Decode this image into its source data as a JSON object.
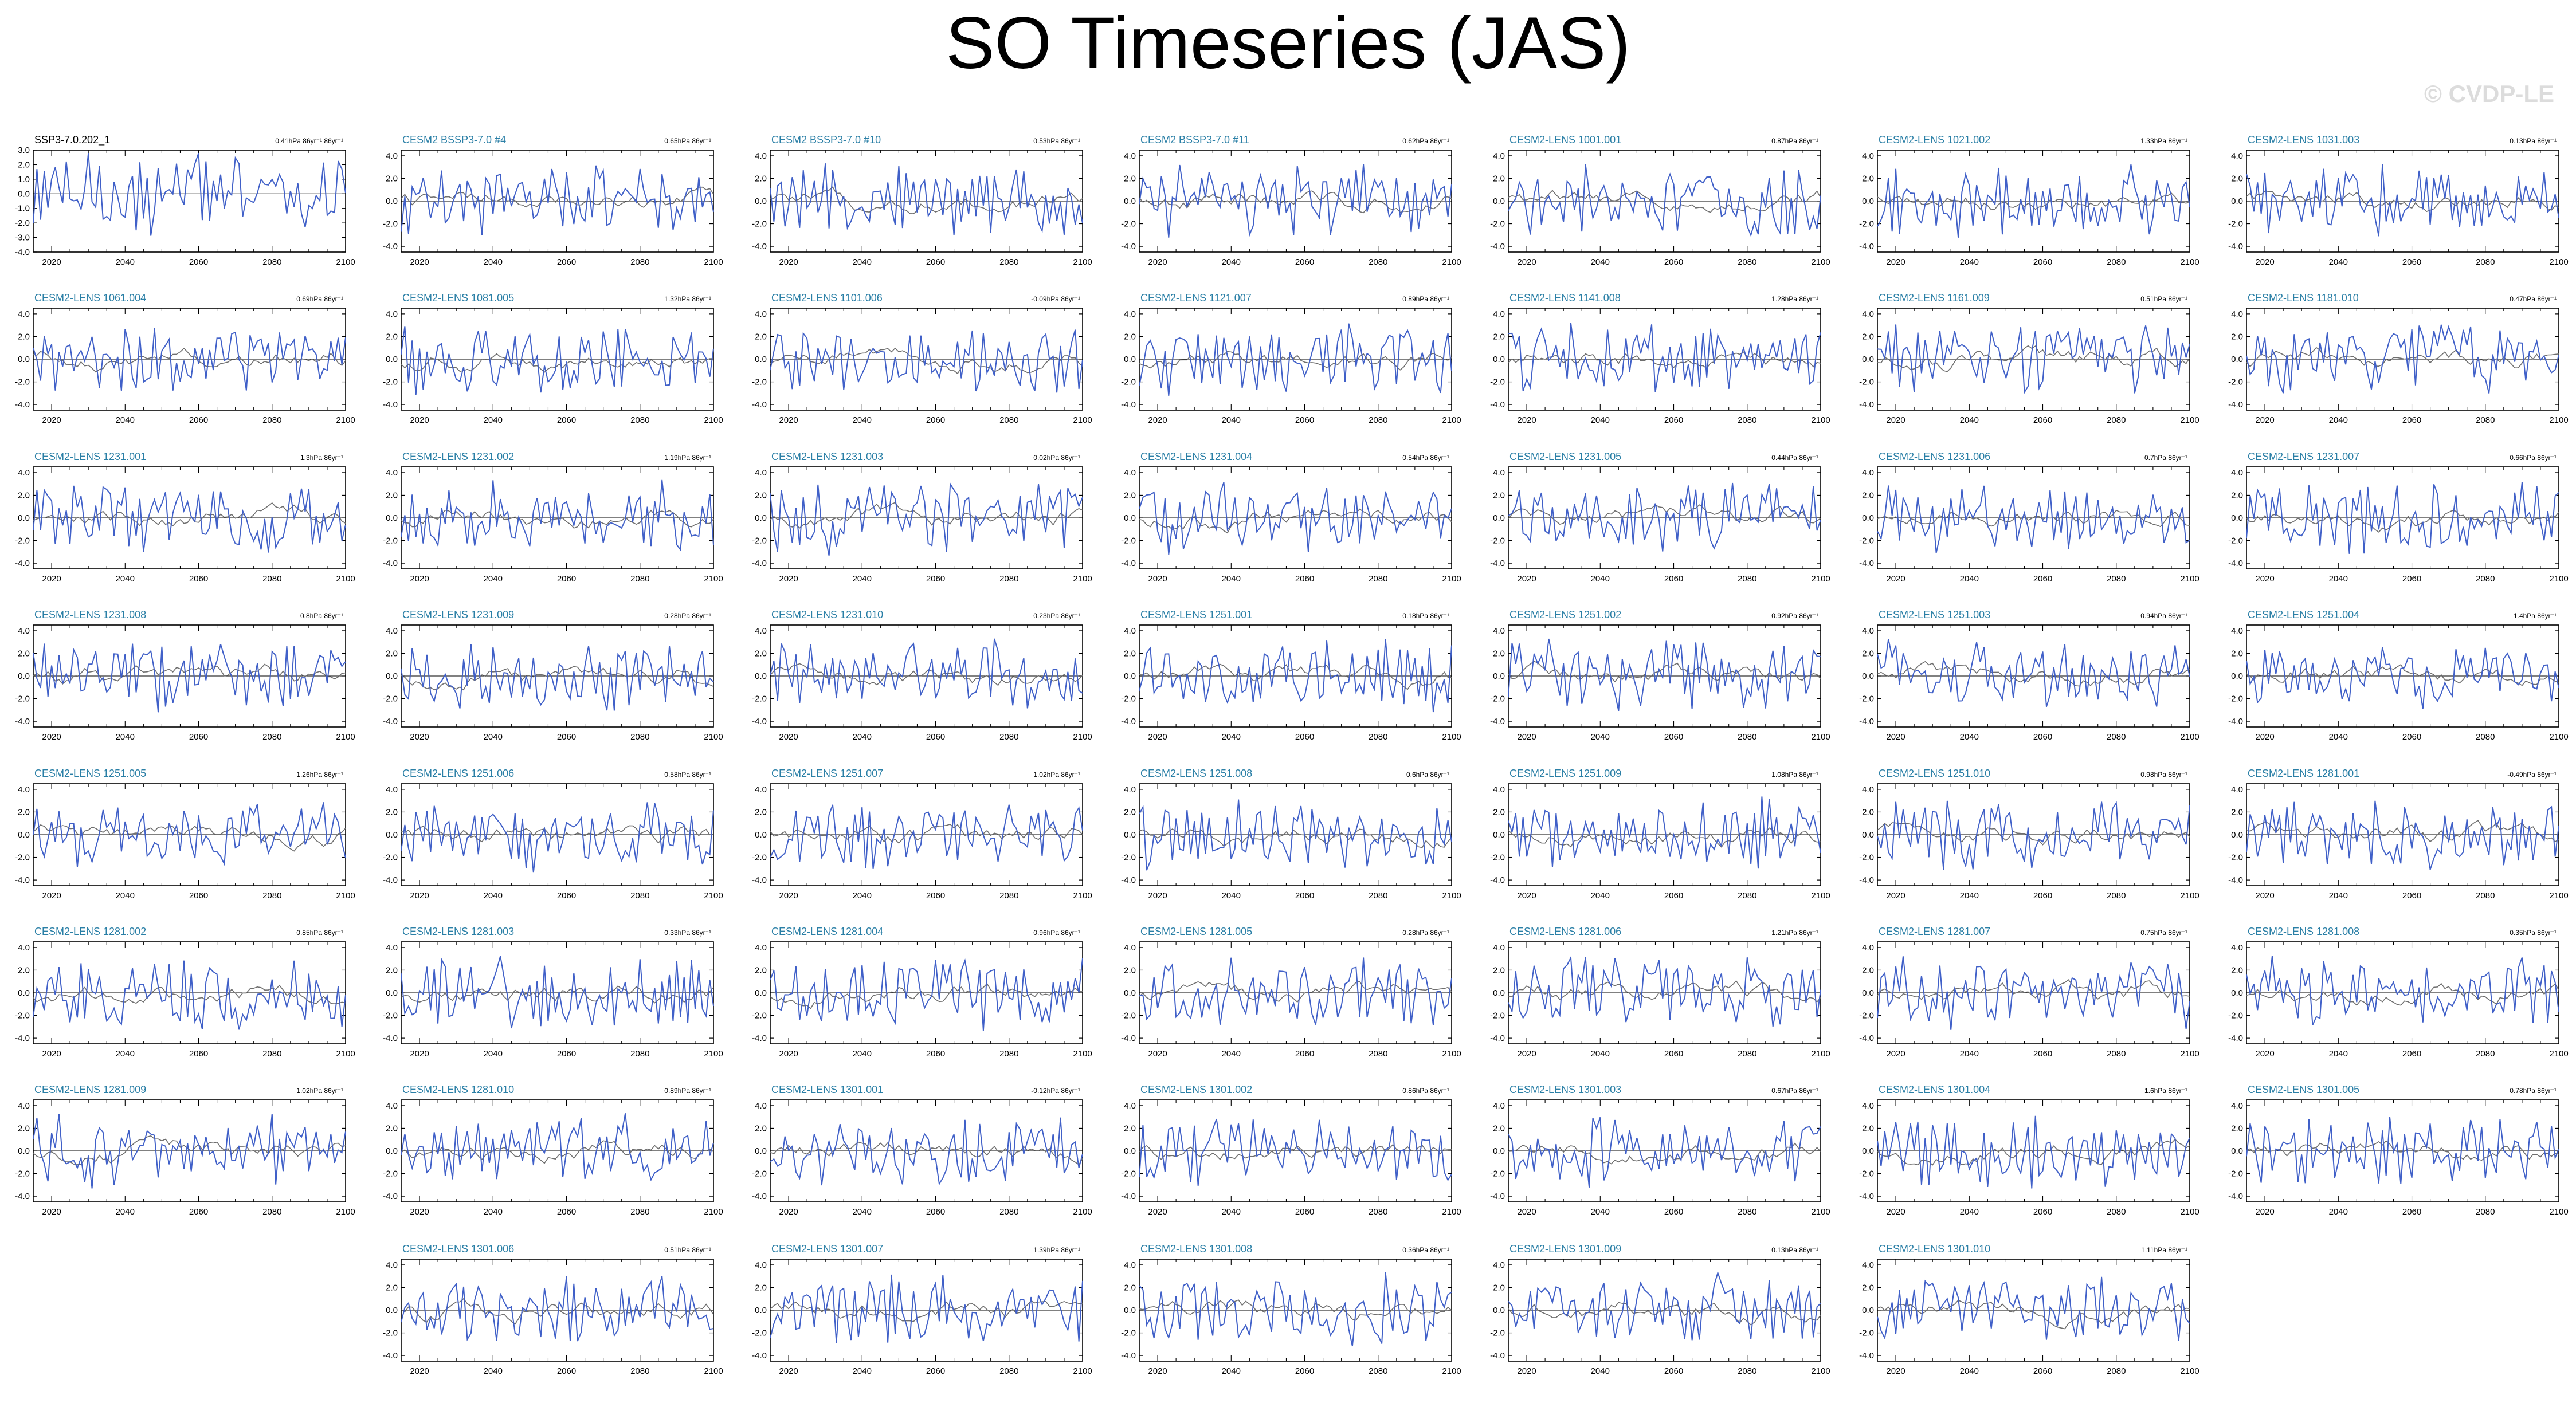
{
  "title": "SO Timeseries (JAS)",
  "watermark": "© CVDP-LE",
  "colors": {
    "obs": "#000000",
    "model": "#4060c8",
    "mean": "#6e6e6e",
    "title_model": "#2a7fa6",
    "title_obs": "#000000"
  },
  "chart_data": {
    "type": "line",
    "x_range": [
      2015,
      2100
    ],
    "x_ticks": [
      "2020",
      "2040",
      "2060",
      "2080",
      "2100"
    ],
    "panels": [
      {
        "name": "SSP3-7.0.202_1",
        "trend": "0.41hPa 86yr⁻¹ 86yr⁻¹",
        "y_ticks": [
          "3.0",
          "2.0",
          "1.0",
          "0.0",
          "-1.0",
          "-2.0",
          "-3.0",
          "-4.0"
        ],
        "ylim": [
          -4,
          3
        ],
        "obs": true
      },
      {
        "name": "CESM2 BSSP3-7.0 #4",
        "trend": "0.65hPa 86yr⁻¹",
        "y_ticks": [
          "4.0",
          "2.0",
          "0.0",
          "-2.0",
          "-4.0"
        ],
        "ylim": [
          -4.5,
          4.5
        ]
      },
      {
        "name": "CESM2 BSSP3-7.0 #10",
        "trend": "0.53hPa 86yr⁻¹",
        "y_ticks": [
          "4.0",
          "2.0",
          "0.0",
          "-2.0",
          "-4.0"
        ],
        "ylim": [
          -4.5,
          4.5
        ]
      },
      {
        "name": "CESM2 BSSP3-7.0 #11",
        "trend": "0.62hPa 86yr⁻¹",
        "y_ticks": [
          "4.0",
          "2.0",
          "0.0",
          "-2.0",
          "-4.0"
        ],
        "ylim": [
          -4.5,
          4.5
        ]
      },
      {
        "name": "CESM2-LENS 1001.001",
        "trend": "0.87hPa 86yr⁻¹",
        "y_ticks": [
          "4.0",
          "2.0",
          "0.0",
          "-2.0",
          "-4.0"
        ],
        "ylim": [
          -4.5,
          4.5
        ]
      },
      {
        "name": "CESM2-LENS 1021.002",
        "trend": "1.33hPa 86yr⁻¹",
        "y_ticks": [
          "4.0",
          "2.0",
          "0.0",
          "-2.0",
          "-4.0"
        ],
        "ylim": [
          -4.5,
          4.5
        ]
      },
      {
        "name": "CESM2-LENS 1031.003",
        "trend": "0.13hPa 86yr⁻¹",
        "y_ticks": [
          "4.0",
          "2.0",
          "0.0",
          "-2.0",
          "-4.0"
        ],
        "ylim": [
          -4.5,
          4.5
        ]
      },
      {
        "name": "CESM2-LENS 1061.004",
        "trend": "0.69hPa 86yr⁻¹",
        "y_ticks": [
          "4.0",
          "2.0",
          "0.0",
          "-2.0",
          "-4.0"
        ],
        "ylim": [
          -4.5,
          4.5
        ]
      },
      {
        "name": "CESM2-LENS 1081.005",
        "trend": "1.32hPa 86yr⁻¹",
        "y_ticks": [
          "4.0",
          "2.0",
          "0.0",
          "-2.0",
          "-4.0"
        ],
        "ylim": [
          -4.5,
          4.5
        ]
      },
      {
        "name": "CESM2-LENS 1101.006",
        "trend": "-0.09hPa 86yr⁻¹",
        "y_ticks": [
          "4.0",
          "2.0",
          "0.0",
          "-2.0",
          "-4.0"
        ],
        "ylim": [
          -4.5,
          4.5
        ]
      },
      {
        "name": "CESM2-LENS 1121.007",
        "trend": "0.89hPa 86yr⁻¹",
        "y_ticks": [
          "4.0",
          "2.0",
          "0.0",
          "-2.0",
          "-4.0"
        ],
        "ylim": [
          -4.5,
          4.5
        ]
      },
      {
        "name": "CESM2-LENS 1141.008",
        "trend": "1.28hPa 86yr⁻¹",
        "y_ticks": [
          "4.0",
          "2.0",
          "0.0",
          "-2.0",
          "-4.0"
        ],
        "ylim": [
          -4.5,
          4.5
        ]
      },
      {
        "name": "CESM2-LENS 1161.009",
        "trend": "0.51hPa 86yr⁻¹",
        "y_ticks": [
          "4.0",
          "2.0",
          "0.0",
          "-2.0",
          "-4.0"
        ],
        "ylim": [
          -4.5,
          4.5
        ]
      },
      {
        "name": "CESM2-LENS 1181.010",
        "trend": "0.47hPa 86yr⁻¹",
        "y_ticks": [
          "4.0",
          "2.0",
          "0.0",
          "-2.0",
          "-4.0"
        ],
        "ylim": [
          -4.5,
          4.5
        ]
      },
      {
        "name": "CESM2-LENS 1231.001",
        "trend": "1.3hPa 86yr⁻¹",
        "y_ticks": [
          "4.0",
          "2.0",
          "0.0",
          "-2.0",
          "-4.0"
        ],
        "ylim": [
          -4.5,
          4.5
        ]
      },
      {
        "name": "CESM2-LENS 1231.002",
        "trend": "1.19hPa 86yr⁻¹",
        "y_ticks": [
          "4.0",
          "2.0",
          "0.0",
          "-2.0",
          "-4.0"
        ],
        "ylim": [
          -4.5,
          4.5
        ]
      },
      {
        "name": "CESM2-LENS 1231.003",
        "trend": "0.02hPa 86yr⁻¹",
        "y_ticks": [
          "4.0",
          "2.0",
          "0.0",
          "-2.0",
          "-4.0"
        ],
        "ylim": [
          -4.5,
          4.5
        ]
      },
      {
        "name": "CESM2-LENS 1231.004",
        "trend": "0.54hPa 86yr⁻¹",
        "y_ticks": [
          "4.0",
          "2.0",
          "0.0",
          "-2.0",
          "-4.0"
        ],
        "ylim": [
          -4.5,
          4.5
        ]
      },
      {
        "name": "CESM2-LENS 1231.005",
        "trend": "0.44hPa 86yr⁻¹",
        "y_ticks": [
          "4.0",
          "2.0",
          "0.0",
          "-2.0",
          "-4.0"
        ],
        "ylim": [
          -4.5,
          4.5
        ]
      },
      {
        "name": "CESM2-LENS 1231.006",
        "trend": "0.7hPa 86yr⁻¹",
        "y_ticks": [
          "4.0",
          "2.0",
          "0.0",
          "-2.0",
          "-4.0"
        ],
        "ylim": [
          -4.5,
          4.5
        ]
      },
      {
        "name": "CESM2-LENS 1231.007",
        "trend": "0.66hPa 86yr⁻¹",
        "y_ticks": [
          "4.0",
          "2.0",
          "0.0",
          "-2.0",
          "-4.0"
        ],
        "ylim": [
          -4.5,
          4.5
        ]
      },
      {
        "name": "CESM2-LENS 1231.008",
        "trend": "0.8hPa 86yr⁻¹",
        "y_ticks": [
          "4.0",
          "2.0",
          "0.0",
          "-2.0",
          "-4.0"
        ],
        "ylim": [
          -4.5,
          4.5
        ]
      },
      {
        "name": "CESM2-LENS 1231.009",
        "trend": "0.28hPa 86yr⁻¹",
        "y_ticks": [
          "4.0",
          "2.0",
          "0.0",
          "-2.0",
          "-4.0"
        ],
        "ylim": [
          -4.5,
          4.5
        ]
      },
      {
        "name": "CESM2-LENS 1231.010",
        "trend": "0.23hPa 86yr⁻¹",
        "y_ticks": [
          "4.0",
          "2.0",
          "0.0",
          "-2.0",
          "-4.0"
        ],
        "ylim": [
          -4.5,
          4.5
        ]
      },
      {
        "name": "CESM2-LENS 1251.001",
        "trend": "0.18hPa 86yr⁻¹",
        "y_ticks": [
          "4.0",
          "2.0",
          "0.0",
          "-2.0",
          "-4.0"
        ],
        "ylim": [
          -4.5,
          4.5
        ]
      },
      {
        "name": "CESM2-LENS 1251.002",
        "trend": "0.92hPa 86yr⁻¹",
        "y_ticks": [
          "4.0",
          "2.0",
          "0.0",
          "-2.0",
          "-4.0"
        ],
        "ylim": [
          -4.5,
          4.5
        ]
      },
      {
        "name": "CESM2-LENS 1251.003",
        "trend": "0.94hPa 86yr⁻¹",
        "y_ticks": [
          "4.0",
          "2.0",
          "0.0",
          "-2.0",
          "-4.0"
        ],
        "ylim": [
          -4.5,
          4.5
        ]
      },
      {
        "name": "CESM2-LENS 1251.004",
        "trend": "1.4hPa 86yr⁻¹",
        "y_ticks": [
          "4.0",
          "2.0",
          "0.0",
          "-2.0",
          "-4.0"
        ],
        "ylim": [
          -4.5,
          4.5
        ]
      },
      {
        "name": "CESM2-LENS 1251.005",
        "trend": "1.26hPa 86yr⁻¹",
        "y_ticks": [
          "4.0",
          "2.0",
          "0.0",
          "-2.0",
          "-4.0"
        ],
        "ylim": [
          -4.5,
          4.5
        ]
      },
      {
        "name": "CESM2-LENS 1251.006",
        "trend": "0.58hPa 86yr⁻¹",
        "y_ticks": [
          "4.0",
          "2.0",
          "0.0",
          "-2.0",
          "-4.0"
        ],
        "ylim": [
          -4.5,
          4.5
        ]
      },
      {
        "name": "CESM2-LENS 1251.007",
        "trend": "1.02hPa 86yr⁻¹",
        "y_ticks": [
          "4.0",
          "2.0",
          "0.0",
          "-2.0",
          "-4.0"
        ],
        "ylim": [
          -4.5,
          4.5
        ]
      },
      {
        "name": "CESM2-LENS 1251.008",
        "trend": "0.6hPa 86yr⁻¹",
        "y_ticks": [
          "4.0",
          "2.0",
          "0.0",
          "-2.0",
          "-4.0"
        ],
        "ylim": [
          -4.5,
          4.5
        ]
      },
      {
        "name": "CESM2-LENS 1251.009",
        "trend": "1.08hPa 86yr⁻¹",
        "y_ticks": [
          "4.0",
          "2.0",
          "0.0",
          "-2.0",
          "-4.0"
        ],
        "ylim": [
          -4.5,
          4.5
        ]
      },
      {
        "name": "CESM2-LENS 1251.010",
        "trend": "0.98hPa 86yr⁻¹",
        "y_ticks": [
          "4.0",
          "2.0",
          "0.0",
          "-2.0",
          "-4.0"
        ],
        "ylim": [
          -4.5,
          4.5
        ]
      },
      {
        "name": "CESM2-LENS 1281.001",
        "trend": "-0.49hPa 86yr⁻¹",
        "y_ticks": [
          "4.0",
          "2.0",
          "0.0",
          "-2.0",
          "-4.0"
        ],
        "ylim": [
          -4.5,
          4.5
        ]
      },
      {
        "name": "CESM2-LENS 1281.002",
        "trend": "0.85hPa 86yr⁻¹",
        "y_ticks": [
          "4.0",
          "2.0",
          "0.0",
          "-2.0",
          "-4.0"
        ],
        "ylim": [
          -4.5,
          4.5
        ]
      },
      {
        "name": "CESM2-LENS 1281.003",
        "trend": "0.33hPa 86yr⁻¹",
        "y_ticks": [
          "4.0",
          "2.0",
          "0.0",
          "-2.0",
          "-4.0"
        ],
        "ylim": [
          -4.5,
          4.5
        ]
      },
      {
        "name": "CESM2-LENS 1281.004",
        "trend": "0.96hPa 86yr⁻¹",
        "y_ticks": [
          "4.0",
          "2.0",
          "0.0",
          "-2.0",
          "-4.0"
        ],
        "ylim": [
          -4.5,
          4.5
        ]
      },
      {
        "name": "CESM2-LENS 1281.005",
        "trend": "0.28hPa 86yr⁻¹",
        "y_ticks": [
          "4.0",
          "2.0",
          "0.0",
          "-2.0",
          "-4.0"
        ],
        "ylim": [
          -4.5,
          4.5
        ]
      },
      {
        "name": "CESM2-LENS 1281.006",
        "trend": "1.21hPa 86yr⁻¹",
        "y_ticks": [
          "4.0",
          "2.0",
          "0.0",
          "-2.0",
          "-4.0"
        ],
        "ylim": [
          -4.5,
          4.5
        ]
      },
      {
        "name": "CESM2-LENS 1281.007",
        "trend": "0.75hPa 86yr⁻¹",
        "y_ticks": [
          "4.0",
          "2.0",
          "0.0",
          "-2.0",
          "-4.0"
        ],
        "ylim": [
          -4.5,
          4.5
        ]
      },
      {
        "name": "CESM2-LENS 1281.008",
        "trend": "0.35hPa 86yr⁻¹",
        "y_ticks": [
          "4.0",
          "2.0",
          "0.0",
          "-2.0",
          "-4.0"
        ],
        "ylim": [
          -4.5,
          4.5
        ]
      },
      {
        "name": "CESM2-LENS 1281.009",
        "trend": "1.02hPa 86yr⁻¹",
        "y_ticks": [
          "4.0",
          "2.0",
          "0.0",
          "-2.0",
          "-4.0"
        ],
        "ylim": [
          -4.5,
          4.5
        ]
      },
      {
        "name": "CESM2-LENS 1281.010",
        "trend": "0.89hPa 86yr⁻¹",
        "y_ticks": [
          "4.0",
          "2.0",
          "0.0",
          "-2.0",
          "-4.0"
        ],
        "ylim": [
          -4.5,
          4.5
        ]
      },
      {
        "name": "CESM2-LENS 1301.001",
        "trend": "-0.12hPa 86yr⁻¹",
        "y_ticks": [
          "4.0",
          "2.0",
          "0.0",
          "-2.0",
          "-4.0"
        ],
        "ylim": [
          -4.5,
          4.5
        ]
      },
      {
        "name": "CESM2-LENS 1301.002",
        "trend": "0.86hPa 86yr⁻¹",
        "y_ticks": [
          "4.0",
          "2.0",
          "0.0",
          "-2.0",
          "-4.0"
        ],
        "ylim": [
          -4.5,
          4.5
        ]
      },
      {
        "name": "CESM2-LENS 1301.003",
        "trend": "0.67hPa 86yr⁻¹",
        "y_ticks": [
          "4.0",
          "2.0",
          "0.0",
          "-2.0",
          "-4.0"
        ],
        "ylim": [
          -4.5,
          4.5
        ]
      },
      {
        "name": "CESM2-LENS 1301.004",
        "trend": "1.6hPa 86yr⁻¹",
        "y_ticks": [
          "4.0",
          "2.0",
          "0.0",
          "-2.0",
          "-4.0"
        ],
        "ylim": [
          -4.5,
          4.5
        ]
      },
      {
        "name": "CESM2-LENS 1301.005",
        "trend": "0.78hPa 86yr⁻¹",
        "y_ticks": [
          "4.0",
          "2.0",
          "0.0",
          "-2.0",
          "-4.0"
        ],
        "ylim": [
          -4.5,
          4.5
        ]
      },
      {
        "name": "CESM2-LENS 1301.006",
        "trend": "0.51hPa 86yr⁻¹",
        "y_ticks": [
          "4.0",
          "2.0",
          "0.0",
          "-2.0",
          "-4.0"
        ],
        "ylim": [
          -4.5,
          4.5
        ]
      },
      {
        "name": "CESM2-LENS 1301.007",
        "trend": "1.39hPa 86yr⁻¹",
        "y_ticks": [
          "4.0",
          "2.0",
          "0.0",
          "-2.0",
          "-4.0"
        ],
        "ylim": [
          -4.5,
          4.5
        ]
      },
      {
        "name": "CESM2-LENS 1301.008",
        "trend": "0.36hPa 86yr⁻¹",
        "y_ticks": [
          "4.0",
          "2.0",
          "0.0",
          "-2.0",
          "-4.0"
        ],
        "ylim": [
          -4.5,
          4.5
        ]
      },
      {
        "name": "CESM2-LENS 1301.009",
        "trend": "0.13hPa 86yr⁻¹",
        "y_ticks": [
          "4.0",
          "2.0",
          "0.0",
          "-2.0",
          "-4.0"
        ],
        "ylim": [
          -4.5,
          4.5
        ]
      },
      {
        "name": "CESM2-LENS 1301.010",
        "trend": "1.11hPa 86yr⁻¹",
        "y_ticks": [
          "4.0",
          "2.0",
          "0.0",
          "-2.0",
          "-4.0"
        ],
        "ylim": [
          -4.5,
          4.5
        ]
      }
    ]
  }
}
